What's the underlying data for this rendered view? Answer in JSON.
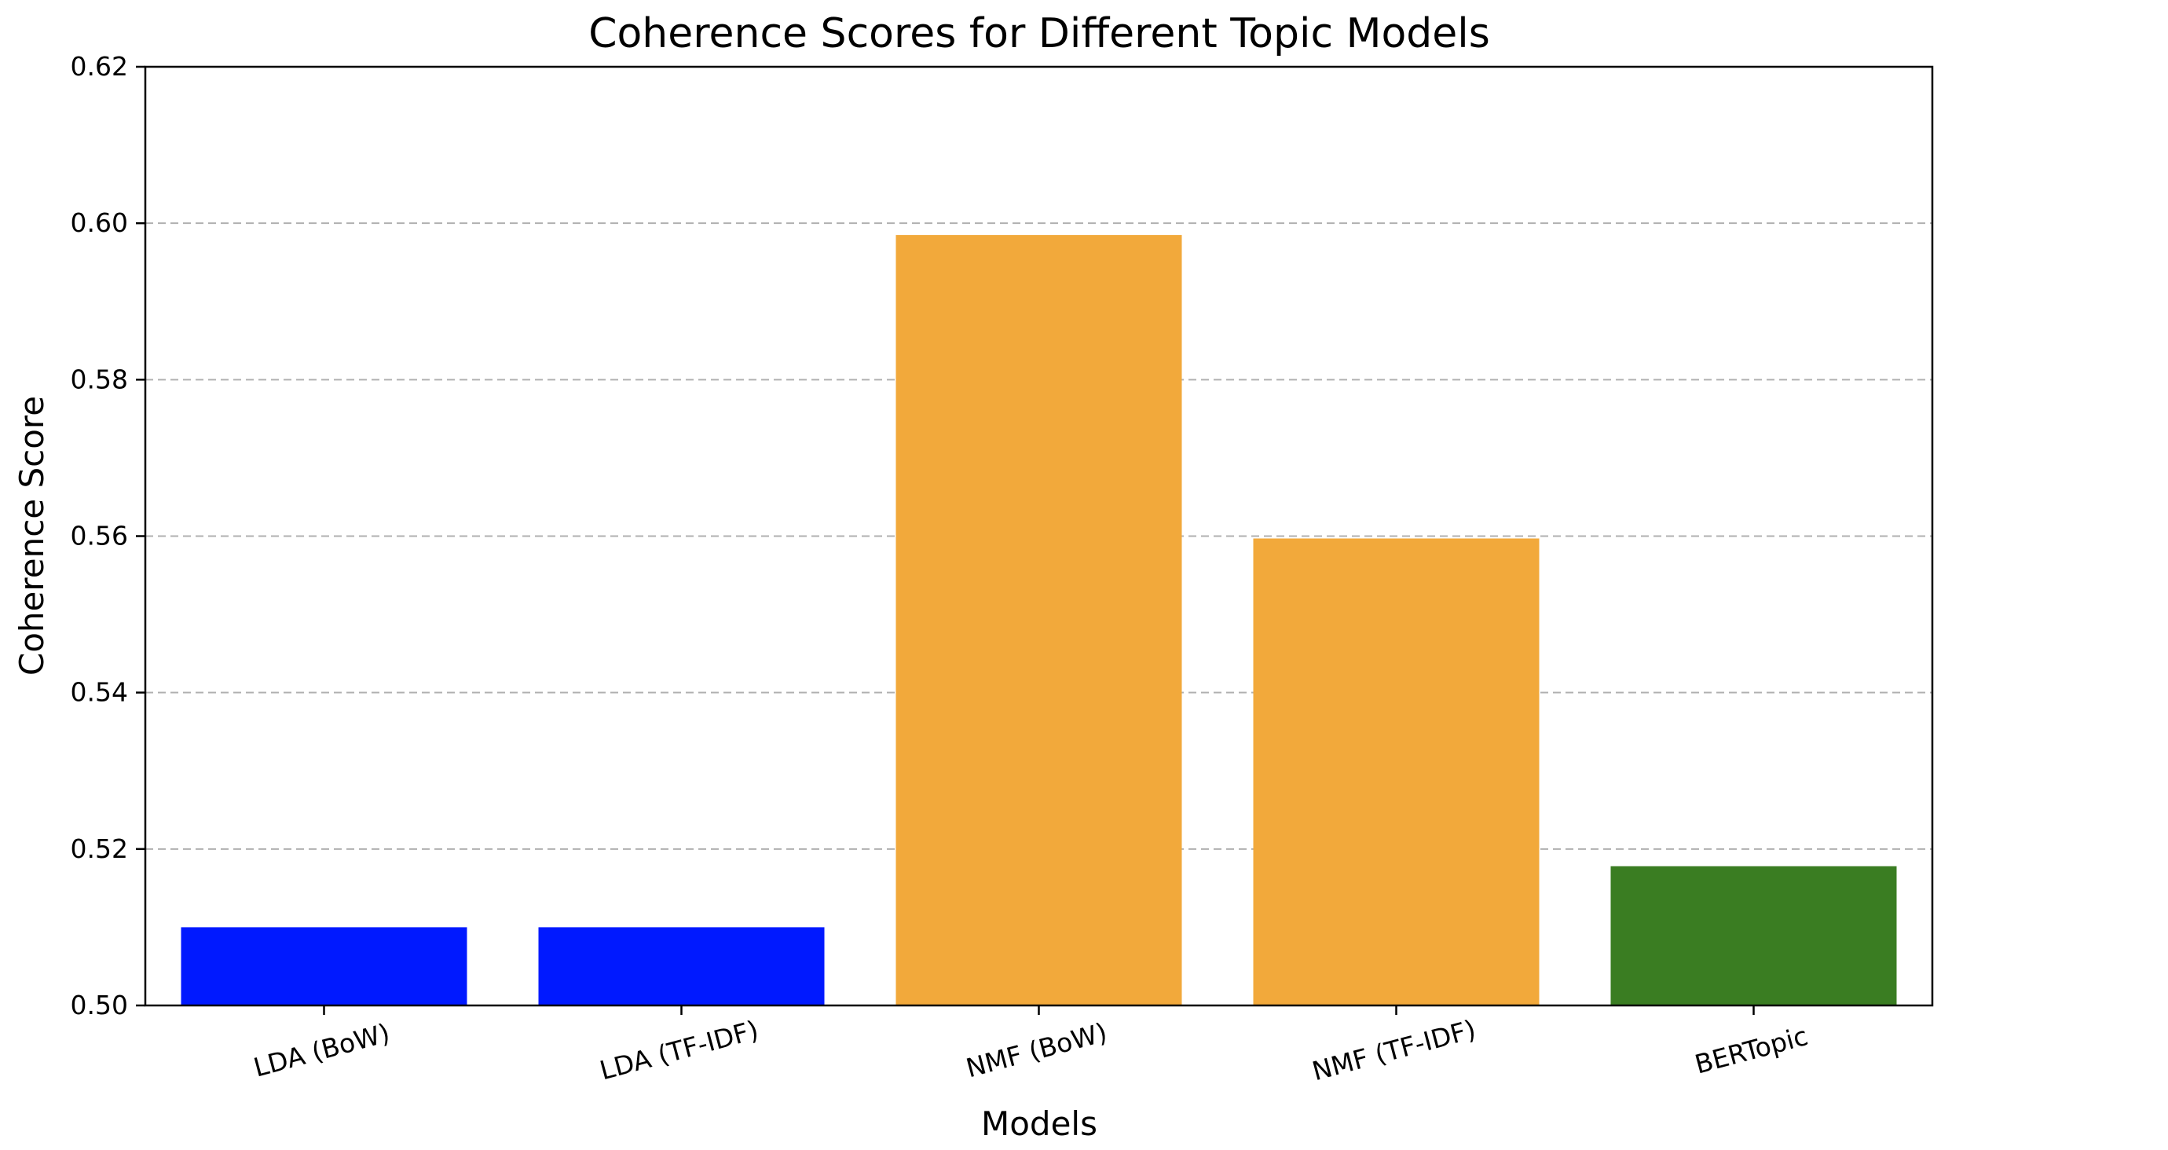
{
  "chart_data": {
    "type": "bar",
    "title": "Coherence Scores for Different Topic Models",
    "xlabel": "Models",
    "ylabel": "Coherence Score",
    "categories": [
      "LDA (BoW)",
      "LDA (TF-IDF)",
      "NMF (BoW)",
      "NMF (TF-IDF)",
      "BERTopic"
    ],
    "values": [
      0.51,
      0.51,
      0.5985,
      0.5597,
      0.5178
    ],
    "colors": [
      "#0019ff",
      "#0019ff",
      "#f2a93b",
      "#f2a93b",
      "#3a7d22"
    ],
    "ylim": [
      0.5,
      0.62
    ],
    "yticks": [
      "0.50",
      "0.52",
      "0.54",
      "0.56",
      "0.58",
      "0.60",
      "0.62"
    ],
    "grid": "y-dashed",
    "xtick_rotation": 15
  }
}
